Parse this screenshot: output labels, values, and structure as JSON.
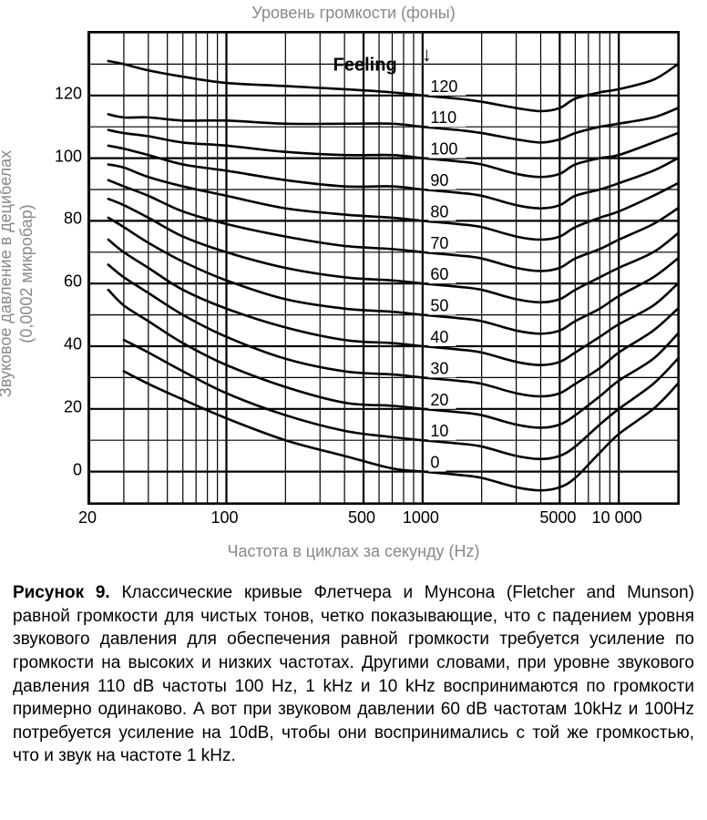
{
  "chart": {
    "type": "line",
    "top_title": "Уровень громкости (фоны)",
    "y_title_line1": "Звуковое давление в децибелах",
    "y_title_line2": "(0,0002 микробар)",
    "x_title": "Частота в циклах за секунду (Hz)",
    "feeling_label": "Feeling",
    "arrow_glyph": "↓",
    "background_color": "#ffffff",
    "grid_color": "#000000",
    "grid_major_width": 2.2,
    "grid_minor_width": 1.2,
    "curve_color": "#000000",
    "curve_width": 2.6,
    "label_fontsize": 18,
    "title_fontsize": 18,
    "title_color": "#888888",
    "x_scale": "log",
    "y_scale": "linear",
    "xlim": [
      20,
      20000
    ],
    "ylim": [
      -10,
      140
    ],
    "x_ticks": [
      {
        "v": 20,
        "label": "20"
      },
      {
        "v": 100,
        "label": "100"
      },
      {
        "v": 500,
        "label": "500"
      },
      {
        "v": 1000,
        "label": "1000"
      },
      {
        "v": 5000,
        "label": "5000"
      },
      {
        "v": 10000,
        "label": "10 000"
      }
    ],
    "x_minor_ticks": [
      20,
      30,
      40,
      50,
      60,
      70,
      80,
      90,
      100,
      200,
      300,
      400,
      500,
      600,
      700,
      800,
      900,
      1000,
      2000,
      3000,
      4000,
      5000,
      6000,
      7000,
      8000,
      9000,
      10000,
      20000
    ],
    "y_ticks": [
      0,
      20,
      40,
      60,
      80,
      100,
      120
    ],
    "y_minor_step": 10,
    "curves": [
      {
        "phon": "0",
        "label_x": 1050,
        "points": [
          [
            30,
            32
          ],
          [
            40,
            28
          ],
          [
            60,
            23
          ],
          [
            100,
            17
          ],
          [
            200,
            10
          ],
          [
            400,
            5
          ],
          [
            700,
            1
          ],
          [
            1000,
            0
          ],
          [
            1500,
            -1
          ],
          [
            2000,
            -2
          ],
          [
            3000,
            -5
          ],
          [
            4000,
            -6
          ],
          [
            5000,
            -5
          ],
          [
            6000,
            -2
          ],
          [
            8000,
            6
          ],
          [
            10000,
            12
          ],
          [
            15000,
            20
          ],
          [
            20000,
            28
          ]
        ]
      },
      {
        "phon": "10",
        "label_x": 1050,
        "points": [
          [
            30,
            42
          ],
          [
            40,
            38
          ],
          [
            60,
            32
          ],
          [
            100,
            25
          ],
          [
            200,
            18
          ],
          [
            400,
            13
          ],
          [
            700,
            11
          ],
          [
            1000,
            10
          ],
          [
            1500,
            9
          ],
          [
            2000,
            8
          ],
          [
            3000,
            5
          ],
          [
            4000,
            4
          ],
          [
            5000,
            5
          ],
          [
            6000,
            8
          ],
          [
            8000,
            15
          ],
          [
            10000,
            20
          ],
          [
            15000,
            28
          ],
          [
            20000,
            36
          ]
        ]
      },
      {
        "phon": "20",
        "label_x": 1050,
        "points": [
          [
            25,
            58
          ],
          [
            30,
            53
          ],
          [
            40,
            48
          ],
          [
            60,
            41
          ],
          [
            100,
            34
          ],
          [
            200,
            27
          ],
          [
            400,
            22
          ],
          [
            700,
            21
          ],
          [
            1000,
            20
          ],
          [
            1500,
            19
          ],
          [
            2000,
            18
          ],
          [
            3000,
            15
          ],
          [
            4000,
            14
          ],
          [
            5000,
            15
          ],
          [
            6000,
            18
          ],
          [
            8000,
            24
          ],
          [
            10000,
            29
          ],
          [
            15000,
            36
          ],
          [
            20000,
            44
          ]
        ]
      },
      {
        "phon": "30",
        "label_x": 1050,
        "points": [
          [
            25,
            66
          ],
          [
            30,
            62
          ],
          [
            40,
            57
          ],
          [
            60,
            50
          ],
          [
            100,
            43
          ],
          [
            200,
            36
          ],
          [
            400,
            32
          ],
          [
            700,
            31
          ],
          [
            1000,
            30
          ],
          [
            1500,
            29
          ],
          [
            2000,
            28
          ],
          [
            3000,
            25
          ],
          [
            4000,
            24
          ],
          [
            5000,
            25
          ],
          [
            6000,
            28
          ],
          [
            8000,
            33
          ],
          [
            10000,
            38
          ],
          [
            15000,
            45
          ],
          [
            20000,
            52
          ]
        ]
      },
      {
        "phon": "40",
        "label_x": 1050,
        "points": [
          [
            25,
            74
          ],
          [
            30,
            70
          ],
          [
            40,
            65
          ],
          [
            60,
            58
          ],
          [
            100,
            52
          ],
          [
            200,
            46
          ],
          [
            400,
            42
          ],
          [
            700,
            41
          ],
          [
            1000,
            40
          ],
          [
            1500,
            39
          ],
          [
            2000,
            38
          ],
          [
            3000,
            35
          ],
          [
            4000,
            34
          ],
          [
            5000,
            35
          ],
          [
            6000,
            38
          ],
          [
            8000,
            43
          ],
          [
            10000,
            47
          ],
          [
            15000,
            53
          ],
          [
            20000,
            60
          ]
        ]
      },
      {
        "phon": "50",
        "label_x": 1050,
        "points": [
          [
            25,
            81
          ],
          [
            30,
            78
          ],
          [
            40,
            73
          ],
          [
            60,
            67
          ],
          [
            100,
            61
          ],
          [
            200,
            55
          ],
          [
            400,
            52
          ],
          [
            700,
            51
          ],
          [
            1000,
            50
          ],
          [
            1500,
            49
          ],
          [
            2000,
            48
          ],
          [
            3000,
            45
          ],
          [
            4000,
            44
          ],
          [
            5000,
            45
          ],
          [
            6000,
            48
          ],
          [
            8000,
            52
          ],
          [
            10000,
            56
          ],
          [
            15000,
            62
          ],
          [
            20000,
            68
          ]
        ]
      },
      {
        "phon": "60",
        "label_x": 1050,
        "points": [
          [
            25,
            87
          ],
          [
            30,
            85
          ],
          [
            40,
            81
          ],
          [
            60,
            75
          ],
          [
            100,
            70
          ],
          [
            200,
            65
          ],
          [
            400,
            62
          ],
          [
            700,
            61
          ],
          [
            1000,
            60
          ],
          [
            1500,
            59
          ],
          [
            2000,
            58
          ],
          [
            3000,
            55
          ],
          [
            4000,
            54
          ],
          [
            5000,
            55
          ],
          [
            6000,
            58
          ],
          [
            8000,
            62
          ],
          [
            10000,
            65
          ],
          [
            15000,
            70
          ],
          [
            20000,
            76
          ]
        ]
      },
      {
        "phon": "70",
        "label_x": 1050,
        "points": [
          [
            25,
            93
          ],
          [
            30,
            91
          ],
          [
            40,
            88
          ],
          [
            60,
            83
          ],
          [
            100,
            79
          ],
          [
            200,
            75
          ],
          [
            400,
            72
          ],
          [
            700,
            71
          ],
          [
            1000,
            70
          ],
          [
            1500,
            69
          ],
          [
            2000,
            68
          ],
          [
            3000,
            65
          ],
          [
            4000,
            64
          ],
          [
            5000,
            65
          ],
          [
            6000,
            68
          ],
          [
            8000,
            71
          ],
          [
            10000,
            74
          ],
          [
            15000,
            79
          ],
          [
            20000,
            84
          ]
        ]
      },
      {
        "phon": "80",
        "label_x": 1050,
        "points": [
          [
            25,
            98
          ],
          [
            30,
            97
          ],
          [
            40,
            94
          ],
          [
            60,
            91
          ],
          [
            100,
            88
          ],
          [
            200,
            84
          ],
          [
            400,
            82
          ],
          [
            700,
            81
          ],
          [
            1000,
            80
          ],
          [
            1500,
            79
          ],
          [
            2000,
            78
          ],
          [
            3000,
            75
          ],
          [
            4000,
            74
          ],
          [
            5000,
            75
          ],
          [
            6000,
            78
          ],
          [
            8000,
            81
          ],
          [
            10000,
            83
          ],
          [
            15000,
            88
          ],
          [
            20000,
            92
          ]
        ]
      },
      {
        "phon": "90",
        "label_x": 1050,
        "points": [
          [
            25,
            104
          ],
          [
            30,
            103
          ],
          [
            40,
            101
          ],
          [
            60,
            98
          ],
          [
            100,
            96
          ],
          [
            200,
            93
          ],
          [
            400,
            91
          ],
          [
            700,
            91
          ],
          [
            1000,
            90
          ],
          [
            1500,
            89
          ],
          [
            2000,
            88
          ],
          [
            3000,
            85
          ],
          [
            4000,
            84
          ],
          [
            5000,
            85
          ],
          [
            6000,
            88
          ],
          [
            8000,
            90
          ],
          [
            10000,
            92
          ],
          [
            15000,
            96
          ],
          [
            20000,
            100
          ]
        ]
      },
      {
        "phon": "100",
        "label_x": 1050,
        "points": [
          [
            25,
            109
          ],
          [
            30,
            108
          ],
          [
            40,
            107
          ],
          [
            60,
            105
          ],
          [
            100,
            104
          ],
          [
            200,
            102
          ],
          [
            400,
            101
          ],
          [
            700,
            101
          ],
          [
            1000,
            100
          ],
          [
            1500,
            99
          ],
          [
            2000,
            98
          ],
          [
            3000,
            95
          ],
          [
            4000,
            94
          ],
          [
            5000,
            95
          ],
          [
            6000,
            98
          ],
          [
            8000,
            100
          ],
          [
            10000,
            101
          ],
          [
            15000,
            105
          ],
          [
            20000,
            108
          ]
        ]
      },
      {
        "phon": "110",
        "label_x": 1050,
        "points": [
          [
            25,
            114
          ],
          [
            30,
            113
          ],
          [
            40,
            113
          ],
          [
            60,
            112
          ],
          [
            100,
            112
          ],
          [
            200,
            111
          ],
          [
            400,
            111
          ],
          [
            700,
            111
          ],
          [
            1000,
            110
          ],
          [
            1500,
            109
          ],
          [
            2000,
            108
          ],
          [
            3000,
            106
          ],
          [
            4000,
            105
          ],
          [
            5000,
            106
          ],
          [
            6000,
            108
          ],
          [
            8000,
            110
          ],
          [
            10000,
            111
          ],
          [
            15000,
            113
          ],
          [
            20000,
            116
          ]
        ]
      },
      {
        "phon": "120",
        "label_x": 1050,
        "points": [
          [
            25,
            131
          ],
          [
            30,
            130
          ],
          [
            40,
            128
          ],
          [
            60,
            126
          ],
          [
            100,
            124
          ],
          [
            200,
            123
          ],
          [
            400,
            122
          ],
          [
            700,
            121
          ],
          [
            1000,
            120
          ],
          [
            1500,
            119
          ],
          [
            2000,
            118
          ],
          [
            3000,
            116
          ],
          [
            4000,
            115
          ],
          [
            5000,
            116
          ],
          [
            6000,
            119
          ],
          [
            8000,
            121
          ],
          [
            10000,
            122
          ],
          [
            15000,
            125
          ],
          [
            20000,
            130
          ]
        ]
      }
    ]
  },
  "caption": {
    "figure_label": "Рисунок 9.",
    "text": "Классические кривые Флетчера и Мунсона (Fletcher and Munson) равной громкости для чистых тонов, четко показывающие, что с падением уровня звукового давления для обеспечения равной громкости требуется усиление по громкости на высоких и низких частотах. Другими словами, при уровне звукового давления 110 dB частоты 100 Hz, 1 kHz и 10 kHz воспринимаются по громкости примерно одинаково. А вот при звуковом давлении 60 dB частотам 10kHz и 100Hz потребуется усиление на 10dB, чтобы они воспринимались с той же громкостью, что и звук на частоте 1 kHz."
  }
}
